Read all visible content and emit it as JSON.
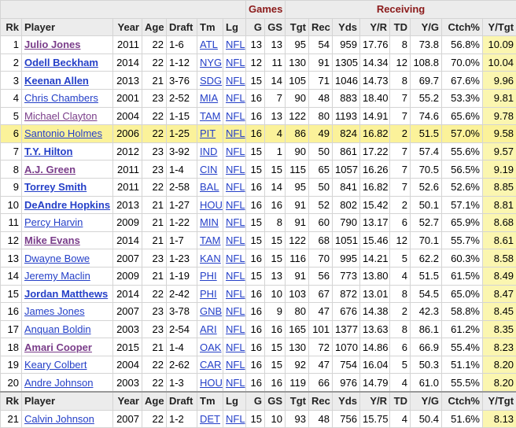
{
  "table": {
    "groups": [
      "Games",
      "Receiving"
    ],
    "columns": [
      "Rk",
      "Player",
      "Year",
      "Age",
      "Draft",
      "Tm",
      "Lg",
      "G",
      "GS",
      "Tgt",
      "Rec",
      "Yds",
      "Y/R",
      "TD",
      "Y/G",
      "Ctch%",
      "Y/Tgt"
    ],
    "rows": [
      [
        "1",
        "Julio Jones",
        "2011",
        "22",
        "1-6",
        "ATL",
        "NFL",
        "13",
        "13",
        "95",
        "54",
        "959",
        "17.76",
        "8",
        "73.8",
        "56.8%",
        "10.09"
      ],
      [
        "2",
        "Odell Beckham",
        "2014",
        "22",
        "1-12",
        "NYG",
        "NFL",
        "12",
        "11",
        "130",
        "91",
        "1305",
        "14.34",
        "12",
        "108.8",
        "70.0%",
        "10.04"
      ],
      [
        "3",
        "Keenan Allen",
        "2013",
        "21",
        "3-76",
        "SDG",
        "NFL",
        "15",
        "14",
        "105",
        "71",
        "1046",
        "14.73",
        "8",
        "69.7",
        "67.6%",
        "9.96"
      ],
      [
        "4",
        "Chris Chambers",
        "2001",
        "23",
        "2-52",
        "MIA",
        "NFL",
        "16",
        "7",
        "90",
        "48",
        "883",
        "18.40",
        "7",
        "55.2",
        "53.3%",
        "9.81"
      ],
      [
        "5",
        "Michael Clayton",
        "2004",
        "22",
        "1-15",
        "TAM",
        "NFL",
        "16",
        "13",
        "122",
        "80",
        "1193",
        "14.91",
        "7",
        "74.6",
        "65.6%",
        "9.78"
      ],
      [
        "6",
        "Santonio Holmes",
        "2006",
        "22",
        "1-25",
        "PIT",
        "NFL",
        "16",
        "4",
        "86",
        "49",
        "824",
        "16.82",
        "2",
        "51.5",
        "57.0%",
        "9.58"
      ],
      [
        "7",
        "T.Y. Hilton",
        "2012",
        "23",
        "3-92",
        "IND",
        "NFL",
        "15",
        "1",
        "90",
        "50",
        "861",
        "17.22",
        "7",
        "57.4",
        "55.6%",
        "9.57"
      ],
      [
        "8",
        "A.J. Green",
        "2011",
        "23",
        "1-4",
        "CIN",
        "NFL",
        "15",
        "15",
        "115",
        "65",
        "1057",
        "16.26",
        "7",
        "70.5",
        "56.5%",
        "9.19"
      ],
      [
        "9",
        "Torrey Smith",
        "2011",
        "22",
        "2-58",
        "BAL",
        "NFL",
        "16",
        "14",
        "95",
        "50",
        "841",
        "16.82",
        "7",
        "52.6",
        "52.6%",
        "8.85"
      ],
      [
        "10",
        "DeAndre Hopkins",
        "2013",
        "21",
        "1-27",
        "HOU",
        "NFL",
        "16",
        "16",
        "91",
        "52",
        "802",
        "15.42",
        "2",
        "50.1",
        "57.1%",
        "8.81"
      ],
      [
        "11",
        "Percy Harvin",
        "2009",
        "21",
        "1-22",
        "MIN",
        "NFL",
        "15",
        "8",
        "91",
        "60",
        "790",
        "13.17",
        "6",
        "52.7",
        "65.9%",
        "8.68"
      ],
      [
        "12",
        "Mike Evans",
        "2014",
        "21",
        "1-7",
        "TAM",
        "NFL",
        "15",
        "15",
        "122",
        "68",
        "1051",
        "15.46",
        "12",
        "70.1",
        "55.7%",
        "8.61"
      ],
      [
        "13",
        "Dwayne Bowe",
        "2007",
        "23",
        "1-23",
        "KAN",
        "NFL",
        "16",
        "15",
        "116",
        "70",
        "995",
        "14.21",
        "5",
        "62.2",
        "60.3%",
        "8.58"
      ],
      [
        "14",
        "Jeremy Maclin",
        "2009",
        "21",
        "1-19",
        "PHI",
        "NFL",
        "15",
        "13",
        "91",
        "56",
        "773",
        "13.80",
        "4",
        "51.5",
        "61.5%",
        "8.49"
      ],
      [
        "15",
        "Jordan Matthews",
        "2014",
        "22",
        "2-42",
        "PHI",
        "NFL",
        "16",
        "10",
        "103",
        "67",
        "872",
        "13.01",
        "8",
        "54.5",
        "65.0%",
        "8.47"
      ],
      [
        "16",
        "James Jones",
        "2007",
        "23",
        "3-78",
        "GNB",
        "NFL",
        "16",
        "9",
        "80",
        "47",
        "676",
        "14.38",
        "2",
        "42.3",
        "58.8%",
        "8.45"
      ],
      [
        "17",
        "Anquan Boldin",
        "2003",
        "23",
        "2-54",
        "ARI",
        "NFL",
        "16",
        "16",
        "165",
        "101",
        "1377",
        "13.63",
        "8",
        "86.1",
        "61.2%",
        "8.35"
      ],
      [
        "18",
        "Amari Cooper",
        "2015",
        "21",
        "1-4",
        "OAK",
        "NFL",
        "16",
        "15",
        "130",
        "72",
        "1070",
        "14.86",
        "6",
        "66.9",
        "55.4%",
        "8.23"
      ],
      [
        "19",
        "Keary Colbert",
        "2004",
        "22",
        "2-62",
        "CAR",
        "NFL",
        "16",
        "15",
        "92",
        "47",
        "754",
        "16.04",
        "5",
        "50.3",
        "51.1%",
        "8.20"
      ],
      [
        "20",
        "Andre Johnson",
        "2003",
        "22",
        "1-3",
        "HOU",
        "NFL",
        "16",
        "16",
        "119",
        "66",
        "976",
        "14.79",
        "4",
        "61.0",
        "55.5%",
        "8.20"
      ],
      [
        "21",
        "Calvin Johnson",
        "2007",
        "22",
        "1-2",
        "DET",
        "NFL",
        "15",
        "10",
        "93",
        "48",
        "756",
        "15.75",
        "4",
        "50.4",
        "51.6%",
        "8.13"
      ]
    ],
    "highlighted_row": 5,
    "bold_rows": [
      0,
      1,
      2,
      6,
      7,
      8,
      9,
      11,
      14,
      17
    ],
    "visited_rows": [
      0,
      4,
      7,
      11,
      17
    ],
    "repeat_header_before": 20
  }
}
